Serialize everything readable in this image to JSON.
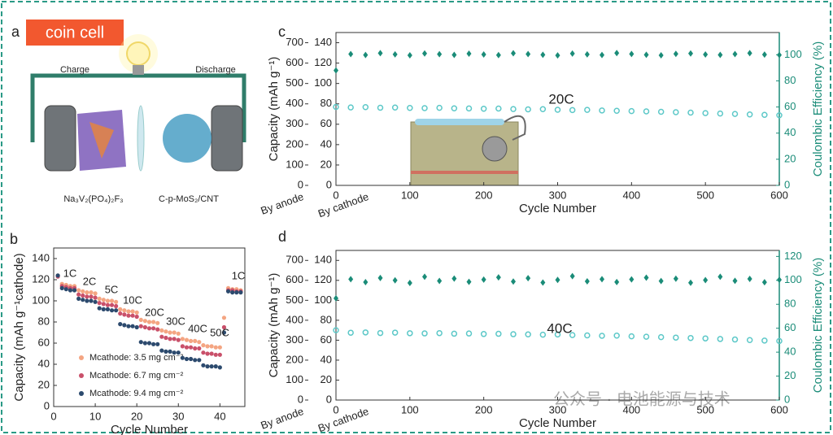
{
  "schematic": {
    "label": "a",
    "badge": "coin cell",
    "charge": "Charge",
    "discharge": "Discharge",
    "cathode": "Na₃V₂(PO₄)₂F₃",
    "anode": "C-p-MoS₂/CNT"
  },
  "watermark": "公众号 · 电池能源与技术",
  "chart_data": [
    {
      "type": "scatter",
      "panel": "b",
      "x_label": "Cycle Number",
      "y_label": "Capacity (mAh g⁻¹cathode)",
      "x": [
        1,
        2,
        3,
        4,
        5,
        6,
        7,
        8,
        9,
        10,
        11,
        12,
        13,
        14,
        15,
        16,
        17,
        18,
        19,
        20,
        21,
        22,
        23,
        24,
        25,
        26,
        27,
        28,
        29,
        30,
        31,
        32,
        33,
        34,
        35,
        36,
        37,
        38,
        39,
        40,
        41,
        42,
        43,
        44,
        45
      ],
      "series": [
        {
          "name": "Mcathode: 3.5 mg cm⁻²",
          "color": "#f4a582",
          "values": [
            124,
            116,
            115,
            114,
            114,
            110,
            109,
            108,
            108,
            107,
            102,
            101,
            100,
            100,
            99,
            92,
            91,
            90,
            90,
            89,
            82,
            81,
            80,
            80,
            79,
            72,
            71,
            70,
            70,
            69,
            64,
            63,
            62,
            62,
            61,
            58,
            57,
            57,
            56,
            56,
            84,
            112,
            111,
            111,
            110
          ]
        },
        {
          "name": "Mcathode: 6.7 mg cm⁻²",
          "color": "#c9506a",
          "values": [
            123,
            114,
            113,
            112,
            112,
            106,
            105,
            104,
            104,
            103,
            98,
            97,
            96,
            96,
            95,
            88,
            87,
            86,
            86,
            85,
            76,
            75,
            74,
            74,
            73,
            66,
            65,
            64,
            64,
            63,
            57,
            56,
            56,
            55,
            55,
            51,
            50,
            50,
            49,
            49,
            75,
            110,
            110,
            109,
            109
          ]
        },
        {
          "name": "Mcathode: 9.4 mg cm⁻²",
          "color": "#2c4a6e",
          "values": [
            124,
            112,
            111,
            110,
            110,
            102,
            101,
            100,
            100,
            99,
            93,
            92,
            92,
            91,
            91,
            78,
            77,
            76,
            76,
            75,
            61,
            60,
            60,
            59,
            59,
            53,
            52,
            52,
            51,
            51,
            46,
            45,
            45,
            44,
            44,
            39,
            38,
            38,
            38,
            37,
            70,
            109,
            108,
            108,
            108
          ]
        }
      ],
      "xlim": [
        0,
        46
      ],
      "xticks": [
        0,
        10,
        20,
        30,
        40
      ],
      "ylim": [
        0,
        150
      ],
      "yticks": [
        0,
        20,
        40,
        60,
        80,
        100,
        120,
        140
      ],
      "annotations": [
        "1C",
        "2C",
        "5C",
        "10C",
        "20C",
        "30C",
        "40C",
        "50C",
        "1C"
      ]
    },
    {
      "type": "scatter",
      "panel": "c",
      "x_label": "Cycle Number",
      "y_label": "Capacity (mAh g⁻¹)",
      "y2_label": "Coulombic Efficiency (%)",
      "annotation": "20C",
      "x": [
        0,
        20,
        40,
        60,
        80,
        100,
        120,
        140,
        160,
        180,
        200,
        220,
        240,
        260,
        280,
        300,
        320,
        340,
        360,
        380,
        400,
        420,
        440,
        460,
        480,
        500,
        520,
        540,
        560,
        580,
        600
      ],
      "series": [
        {
          "color": "#5cc8c8",
          "values": [
            77,
            76.5,
            76.8,
            76.2,
            76.4,
            76,
            75.8,
            76.1,
            75.6,
            75.5,
            75.2,
            75.4,
            74.9,
            74.6,
            74.8,
            74.2,
            73.9,
            74.1,
            73.5,
            73.2,
            72.9,
            72.6,
            72.2,
            71.8,
            71.4,
            70.9,
            70.5,
            70.1,
            69.6,
            69.2,
            68.8
          ]
        },
        {
          "color": "#1a8c78",
          "axis": "y2",
          "values": [
            88,
            100.5,
            99.8,
            101.2,
            100.3,
            99.6,
            101,
            100.4,
            99.9,
            100.8,
            100.2,
            99.7,
            101.1,
            100.5,
            100,
            99.5,
            100.9,
            100.3,
            99.8,
            101.3,
            100.6,
            100,
            99.6,
            100.7,
            101,
            100.2,
            99.9,
            100.5,
            101.2,
            100.1,
            99.8
          ]
        }
      ],
      "xlim": [
        0,
        600
      ],
      "xticks": [
        0,
        100,
        200,
        300,
        400,
        500,
        600
      ],
      "ylim": [
        0,
        150
      ],
      "yticks": [
        0,
        20,
        40,
        60,
        80,
        100,
        120,
        140
      ],
      "cathode_axis_label": "By cathode",
      "anode_axis": {
        "label": "By anode",
        "ylim": [
          0,
          750
        ],
        "yticks": [
          0,
          100,
          200,
          300,
          400,
          500,
          600,
          700
        ]
      },
      "y2lim": [
        0,
        117
      ],
      "y2ticks": [
        0,
        20,
        40,
        60,
        80,
        100
      ]
    },
    {
      "type": "scatter",
      "panel": "d",
      "x_label": "Cycle Number",
      "y_label": "Capacity (mAh g⁻¹)",
      "y2_label": "Coulombic Efficiency (%)",
      "annotation": "40C",
      "x": [
        0,
        20,
        40,
        60,
        80,
        100,
        120,
        140,
        160,
        180,
        200,
        220,
        240,
        260,
        280,
        300,
        320,
        340,
        360,
        380,
        400,
        420,
        440,
        460,
        480,
        500,
        520,
        540,
        560,
        580,
        600
      ],
      "series": [
        {
          "color": "#5cc8c8",
          "values": [
            70,
            67.5,
            67.8,
            67.2,
            67.6,
            67,
            66.8,
            67.1,
            66.5,
            66.7,
            66.2,
            66.4,
            66,
            65.8,
            65.5,
            65.7,
            65.1,
            64.8,
            64.4,
            64.6,
            63.9,
            63.5,
            63.1,
            62.6,
            62.2,
            61.8,
            61.2,
            60.7,
            60.1,
            59.6,
            59.2
          ]
        },
        {
          "color": "#1a8c78",
          "axis": "y2",
          "values": [
            85,
            101,
            98.5,
            102,
            100,
            97.8,
            103,
            99.5,
            101.5,
            98.8,
            100.6,
            102.5,
            99,
            101.8,
            98.2,
            100.4,
            103.5,
            99.2,
            101,
            98.6,
            100.8,
            102.2,
            99.4,
            101.4,
            98,
            100.2,
            103,
            99.6,
            101.2,
            98.4,
            100.5
          ]
        }
      ],
      "xlim": [
        0,
        600
      ],
      "xticks": [
        0,
        100,
        200,
        300,
        400,
        500,
        600
      ],
      "ylim": [
        0,
        150
      ],
      "yticks": [
        0,
        20,
        40,
        60,
        80,
        100,
        120,
        140
      ],
      "cathode_axis_label": "By cathode",
      "anode_axis": {
        "label": "By anode",
        "ylim": [
          0,
          750
        ],
        "yticks": [
          0,
          100,
          200,
          300,
          400,
          500,
          600,
          700
        ]
      },
      "y2lim": [
        0,
        125
      ],
      "y2ticks": [
        0,
        20,
        40,
        60,
        80,
        100,
        120
      ]
    }
  ]
}
